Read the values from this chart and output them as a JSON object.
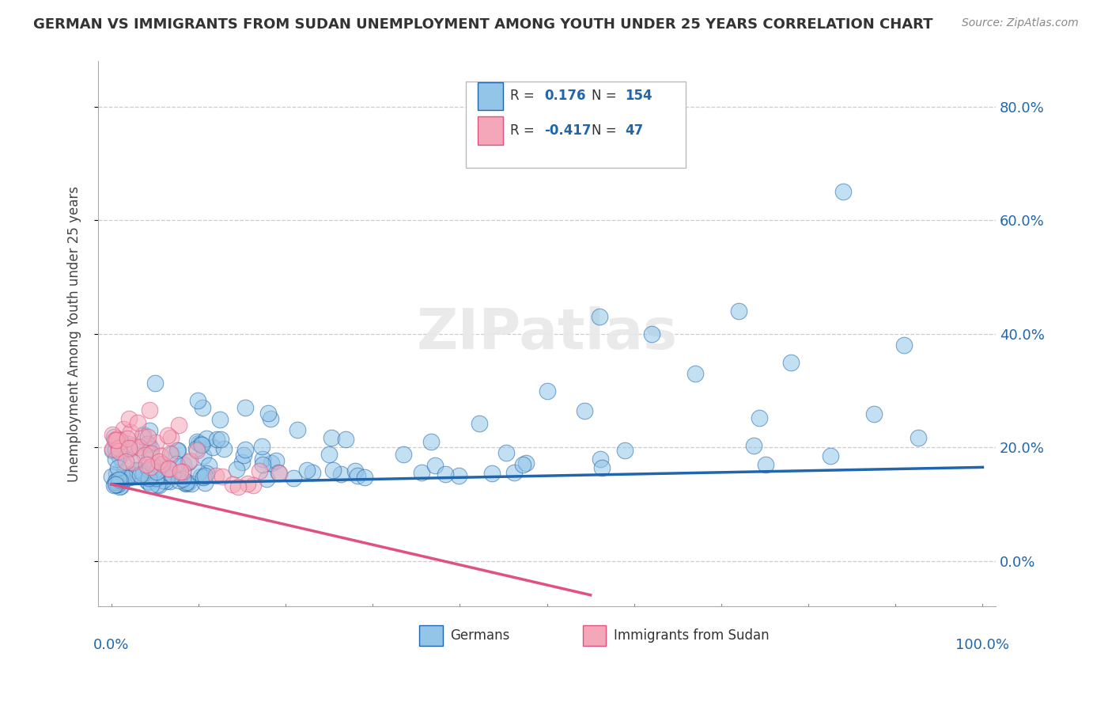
{
  "title": "GERMAN VS IMMIGRANTS FROM SUDAN UNEMPLOYMENT AMONG YOUTH UNDER 25 YEARS CORRELATION CHART",
  "source": "Source: ZipAtlas.com",
  "ylabel": "Unemployment Among Youth under 25 years",
  "xlim": [
    0.0,
    1.0
  ],
  "ylim": [
    -0.08,
    0.88
  ],
  "ytick_positions": [
    0.0,
    0.2,
    0.4,
    0.6,
    0.8
  ],
  "ytick_labels": [
    "0.0%",
    "20.0%",
    "40.0%",
    "60.0%",
    "80.0%"
  ],
  "blue_R": 0.176,
  "blue_N": 154,
  "pink_R": -0.417,
  "pink_N": 47,
  "blue_color": "#92c5e8",
  "pink_color": "#f4a7b9",
  "blue_line_color": "#2166ac",
  "pink_line_color": "#e05080",
  "tick_color": "#2166ac",
  "legend_label_1": "Germans",
  "legend_label_2": "Immigrants from Sudan",
  "background_color": "#ffffff",
  "grid_color": "#cccccc"
}
